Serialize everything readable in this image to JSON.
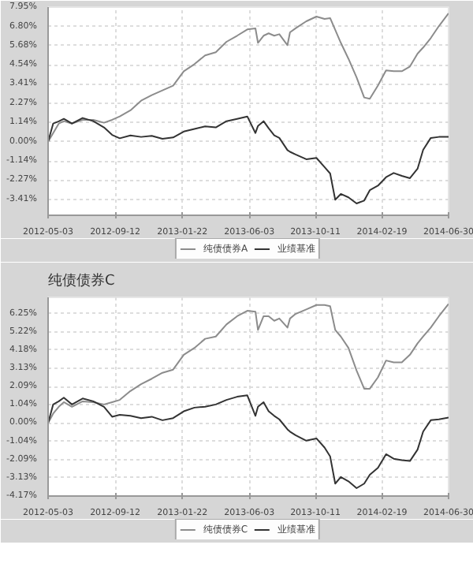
{
  "chart_data": [
    {
      "type": "line",
      "grid": true,
      "legend": "bottom",
      "line_style": "solid",
      "x": [
        "2012-05-03",
        "2012-05-13",
        "2012-05-24",
        "2012-06-03",
        "2012-06-19",
        "2012-07-10",
        "2012-07-31",
        "2012-08-21",
        "2012-09-06",
        "2012-09-21",
        "2012-10-12",
        "2012-11-02",
        "2012-11-23",
        "2012-12-14",
        "2013-01-04",
        "2013-01-25",
        "2013-02-15",
        "2013-03-08",
        "2013-03-29",
        "2013-04-19",
        "2013-05-10",
        "2013-05-30",
        "2013-06-15",
        "2013-06-20",
        "2013-07-01",
        "2013-07-11",
        "2013-07-22",
        "2013-08-01",
        "2013-08-17",
        "2013-08-22",
        "2013-09-02",
        "2013-09-23",
        "2013-10-13",
        "2013-10-29",
        "2013-11-09",
        "2013-11-19",
        "2013-11-30",
        "2013-12-15",
        "2013-12-31",
        "2014-01-15",
        "2014-01-26",
        "2014-02-11",
        "2014-02-27",
        "2014-03-14",
        "2014-03-30",
        "2014-04-15",
        "2014-04-30",
        "2014-05-11",
        "2014-05-26",
        "2014-06-11",
        "2014-06-30"
      ],
      "xlim": [
        "2012-05-03",
        "2014-06-30"
      ],
      "xticks": [
        {
          "value": "2012-05-03",
          "label": "2012-05-03"
        },
        {
          "value": "2012-09-12",
          "label": "2012-09-12"
        },
        {
          "value": "2013-01-22",
          "label": "2013-01-22"
        },
        {
          "value": "2013-06-03",
          "label": "2013-06-03"
        },
        {
          "value": "2013-10-11",
          "label": "2013-10-11"
        },
        {
          "value": "2014-02-19",
          "label": "2014-02-19"
        },
        {
          "value": "2014-06-30",
          "label": "2014-06-30"
        }
      ],
      "ylim": [
        -4.35,
        7.95
      ],
      "yticks": [
        {
          "value": -3.41,
          "label": "-3.41%"
        },
        {
          "value": -2.27,
          "label": "-2.27%"
        },
        {
          "value": -1.14,
          "label": "-1.14%"
        },
        {
          "value": 0,
          "label": "0.00%"
        },
        {
          "value": 1.14,
          "label": "1.14%"
        },
        {
          "value": 2.27,
          "label": "2.27%"
        },
        {
          "value": 3.41,
          "label": "3.41%"
        },
        {
          "value": 4.54,
          "label": "4.54%"
        },
        {
          "value": 5.68,
          "label": "5.68%"
        },
        {
          "value": 6.8,
          "label": "6.80%"
        },
        {
          "value": 7.95,
          "label": "7.95%"
        }
      ],
      "series": [
        {
          "name": "纯债债券A",
          "color": "#8c8c8c",
          "values": [
            0,
            0.51,
            1.07,
            1.21,
            1.07,
            1.29,
            1.29,
            1.12,
            1.29,
            1.49,
            1.85,
            2.42,
            2.75,
            3.03,
            3.31,
            4.16,
            4.58,
            5.1,
            5.28,
            5.9,
            6.26,
            6.63,
            6.69,
            5.84,
            6.26,
            6.4,
            6.26,
            6.35,
            5.7,
            6.46,
            6.7,
            7.11,
            7.39,
            7.25,
            7.3,
            6.6,
            5.84,
            4.9,
            3.8,
            2.61,
            2.53,
            3.31,
            4.21,
            4.16,
            4.16,
            4.44,
            5.2,
            5.56,
            6.12,
            6.83,
            7.58
          ]
        },
        {
          "name": "业绩基准",
          "color": "#333333",
          "values": [
            0,
            1.07,
            1.2,
            1.35,
            1.07,
            1.4,
            1.21,
            0.84,
            0.4,
            0.2,
            0.37,
            0.28,
            0.34,
            0.17,
            0.25,
            0.6,
            0.75,
            0.9,
            0.84,
            1.21,
            1.35,
            1.49,
            0.51,
            0.93,
            1.21,
            0.79,
            0.37,
            0.22,
            -0.5,
            -0.6,
            -0.76,
            -1.04,
            -0.96,
            -1.5,
            -1.88,
            -3.43,
            -3.09,
            -3.29,
            -3.65,
            -3.48,
            -2.87,
            -2.6,
            -2.1,
            -1.85,
            -2.02,
            -2.16,
            -1.6,
            -0.48,
            0.22,
            0.28,
            0.28
          ]
        }
      ]
    },
    {
      "type": "line",
      "title": "纯债债券C",
      "grid": true,
      "legend": "bottom",
      "line_style": "solid",
      "x": [
        "2012-05-03",
        "2012-05-13",
        "2012-05-24",
        "2012-06-03",
        "2012-06-19",
        "2012-07-10",
        "2012-07-31",
        "2012-08-21",
        "2012-09-06",
        "2012-09-21",
        "2012-10-12",
        "2012-11-02",
        "2012-11-23",
        "2012-12-14",
        "2013-01-04",
        "2013-01-25",
        "2013-02-15",
        "2013-03-08",
        "2013-03-29",
        "2013-04-19",
        "2013-05-10",
        "2013-05-30",
        "2013-06-15",
        "2013-06-20",
        "2013-07-01",
        "2013-07-11",
        "2013-07-22",
        "2013-08-01",
        "2013-08-17",
        "2013-08-22",
        "2013-09-02",
        "2013-09-23",
        "2013-10-13",
        "2013-10-29",
        "2013-11-09",
        "2013-11-19",
        "2013-11-30",
        "2013-12-15",
        "2013-12-31",
        "2014-01-15",
        "2014-01-26",
        "2014-02-11",
        "2014-02-27",
        "2014-03-14",
        "2014-03-30",
        "2014-04-15",
        "2014-04-30",
        "2014-05-11",
        "2014-05-26",
        "2014-06-11",
        "2014-06-30"
      ],
      "xlim": [
        "2012-05-03",
        "2014-06-30"
      ],
      "xticks": [
        {
          "value": "2012-05-03",
          "label": "2012-05-03"
        },
        {
          "value": "2012-09-12",
          "label": "2012-09-12"
        },
        {
          "value": "2013-01-22",
          "label": "2013-01-22"
        },
        {
          "value": "2013-06-03",
          "label": "2013-06-03"
        },
        {
          "value": "2013-10-11",
          "label": "2013-10-11"
        },
        {
          "value": "2014-02-19",
          "label": "2014-02-19"
        },
        {
          "value": "2014-06-30",
          "label": "2014-06-30"
        }
      ],
      "ylim": [
        -4.17,
        7.18
      ],
      "yticks": [
        {
          "value": -4.17,
          "label": "-4.17%"
        },
        {
          "value": -3.13,
          "label": "-3.13%"
        },
        {
          "value": -2.09,
          "label": "-2.09%"
        },
        {
          "value": -1.04,
          "label": "-1.04%"
        },
        {
          "value": 0,
          "label": "0.00%"
        },
        {
          "value": 1.04,
          "label": "1.04%"
        },
        {
          "value": 2.09,
          "label": "2.09%"
        },
        {
          "value": 3.13,
          "label": "3.13%"
        },
        {
          "value": 4.18,
          "label": "4.18%"
        },
        {
          "value": 5.22,
          "label": "5.22%"
        },
        {
          "value": 6.25,
          "label": "6.25%"
        }
      ],
      "series": [
        {
          "name": "纯债债券C",
          "color": "#8c8c8c",
          "values": [
            0,
            0.54,
            0.93,
            1.19,
            0.93,
            1.24,
            1.19,
            1.06,
            1.19,
            1.32,
            1.83,
            2.22,
            2.53,
            2.87,
            3.05,
            3.9,
            4.29,
            4.81,
            4.94,
            5.63,
            6.1,
            6.41,
            6.36,
            5.32,
            6.1,
            6.1,
            5.84,
            5.97,
            5.45,
            5.97,
            6.23,
            6.49,
            6.74,
            6.74,
            6.67,
            5.32,
            4.94,
            4.29,
            3.0,
            1.96,
            1.96,
            2.61,
            3.57,
            3.46,
            3.46,
            3.9,
            4.55,
            4.94,
            5.45,
            6.1,
            6.8
          ]
        },
        {
          "name": "业绩基准",
          "color": "#333333",
          "values": [
            0,
            1.06,
            1.24,
            1.45,
            1.06,
            1.4,
            1.24,
            0.93,
            0.36,
            0.47,
            0.41,
            0.28,
            0.36,
            0.16,
            0.28,
            0.67,
            0.88,
            0.93,
            1.06,
            1.32,
            1.5,
            1.58,
            0.41,
            0.93,
            1.19,
            0.67,
            0.41,
            0.21,
            -0.36,
            -0.49,
            -0.7,
            -1.01,
            -0.88,
            -1.4,
            -1.91,
            -3.46,
            -3.08,
            -3.33,
            -3.72,
            -3.46,
            -2.95,
            -2.56,
            -1.78,
            -2.04,
            -2.12,
            -2.17,
            -1.52,
            -0.49,
            0.16,
            0.21,
            0.31
          ]
        }
      ]
    }
  ]
}
